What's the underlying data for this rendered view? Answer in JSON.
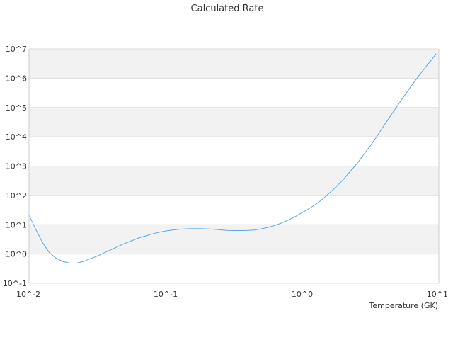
{
  "chart_data": {
    "type": "line",
    "title": "Calculated Rate",
    "xlabel": "Temperature (GK)",
    "ylabel": "",
    "x_scale": "log",
    "y_scale": "log",
    "xlim": [
      0.01,
      10
    ],
    "ylim": [
      0.1,
      10000000
    ],
    "x_ticks": [
      0.01,
      0.1,
      1,
      10
    ],
    "x_tick_labels": [
      "10^-2",
      "10^-1",
      "10^0",
      "10^1"
    ],
    "y_ticks": [
      0.1,
      1,
      10,
      100,
      1000,
      10000,
      100000,
      1000000,
      10000000
    ],
    "y_tick_labels": [
      "10^-1",
      "10^0",
      "10^1",
      "10^2",
      "10^3",
      "10^4",
      "10^5",
      "10^6",
      "10^7"
    ],
    "grid": "horizontal alternating bands",
    "legend": "none",
    "colors": {
      "line": "#5aa5e8",
      "band": "#f2f2f2",
      "gridline": "#dddddd",
      "axis": "#cccccc"
    },
    "series": [
      {
        "x": [
          0.01,
          0.0112,
          0.0126,
          0.0141,
          0.0158,
          0.0178,
          0.02,
          0.0224,
          0.0251,
          0.0282,
          0.0316,
          0.0355,
          0.0398,
          0.0447,
          0.0501,
          0.0562,
          0.0631,
          0.0708,
          0.0794,
          0.0891,
          0.1,
          0.112,
          0.126,
          0.141,
          0.158,
          0.178,
          0.2,
          0.224,
          0.251,
          0.282,
          0.316,
          0.355,
          0.398,
          0.447,
          0.501,
          0.562,
          0.631,
          0.708,
          0.794,
          0.891,
          1,
          1.12,
          1.26,
          1.41,
          1.58,
          1.78,
          2,
          2.24,
          2.51,
          2.82,
          3.16,
          3.55,
          3.98,
          4.47,
          5.01,
          5.62,
          6.31,
          7.08,
          7.94,
          8.91,
          9.55
        ],
        "y": [
          21,
          7,
          2.4,
          1.1,
          0.72,
          0.55,
          0.49,
          0.49,
          0.56,
          0.7,
          0.85,
          1.1,
          1.4,
          1.8,
          2.3,
          2.8,
          3.5,
          4.1,
          4.8,
          5.5,
          6.1,
          6.6,
          7,
          7.2,
          7.3,
          7.3,
          7.2,
          7,
          6.7,
          6.4,
          6.3,
          6.3,
          6.4,
          6.6,
          7.2,
          8.1,
          9.5,
          11.5,
          14.5,
          19,
          26,
          35,
          50,
          75,
          120,
          200,
          350,
          650,
          1200,
          2500,
          5000,
          11000,
          25000,
          55000,
          120000,
          260000,
          560000,
          1150000,
          2300000,
          4400000,
          6900000
        ]
      }
    ]
  }
}
